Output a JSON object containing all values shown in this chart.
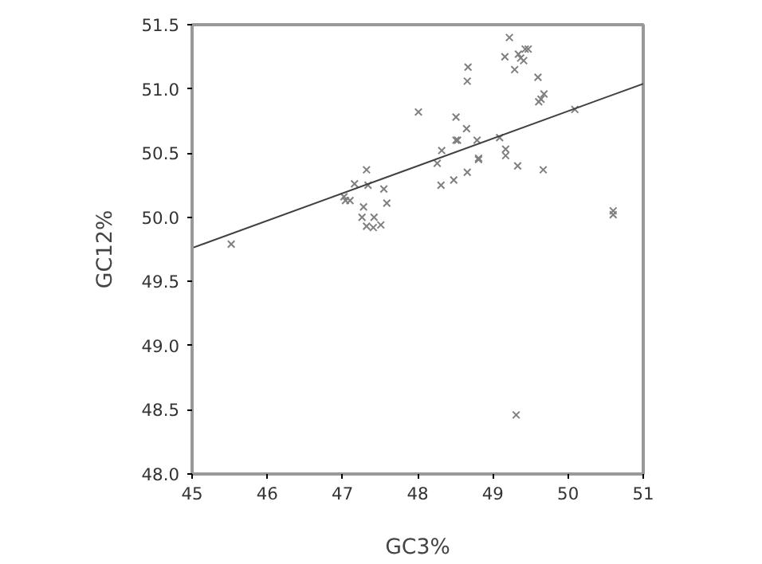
{
  "chart_data": {
    "type": "scatter",
    "xlabel": "GC3%",
    "ylabel": "GC12%",
    "xlim": [
      45,
      51
    ],
    "ylim": [
      48.0,
      51.5
    ],
    "xticks": [
      45,
      46,
      47,
      48,
      49,
      50,
      51
    ],
    "yticks": [
      {
        "value": 48.0,
        "label": "48.0"
      },
      {
        "value": 48.5,
        "label": "48.5"
      },
      {
        "value": 49.0,
        "label": "49.0"
      },
      {
        "value": 49.5,
        "label": "49.5"
      },
      {
        "value": 50.0,
        "label": "50.0"
      },
      {
        "value": 50.5,
        "label": "50.5"
      },
      {
        "value": 51.0,
        "label": "51.0"
      },
      {
        "value": 51.5,
        "label": "51.5"
      }
    ],
    "grid": false,
    "marker": "cross",
    "series": [
      {
        "color": "#7f7f7f",
        "x": [
          45.52,
          47.02,
          47.04,
          47.1,
          47.16,
          47.32,
          47.34,
          47.28,
          47.26,
          47.32,
          47.42,
          47.41,
          47.51,
          47.55,
          47.59,
          48.01,
          48.26,
          48.32,
          48.31,
          48.48,
          48.51,
          48.51,
          48.53,
          48.65,
          48.66,
          48.67,
          48.66,
          48.79,
          48.81,
          48.81,
          49.17,
          49.17,
          49.09,
          49.22,
          49.16,
          49.29,
          49.33,
          49.34,
          49.37,
          49.41,
          49.43,
          49.47,
          49.6,
          49.61,
          49.64,
          49.68,
          49.67,
          50.09,
          50.6,
          50.6,
          49.31
        ],
        "values": [
          49.79,
          50.16,
          50.13,
          50.13,
          50.26,
          50.37,
          50.25,
          50.08,
          50.0,
          49.93,
          50.0,
          49.92,
          49.94,
          50.22,
          50.11,
          50.82,
          50.42,
          50.52,
          50.25,
          50.29,
          50.78,
          50.6,
          50.6,
          50.69,
          50.35,
          51.17,
          51.06,
          50.6,
          50.46,
          50.45,
          50.53,
          50.48,
          50.62,
          51.4,
          51.25,
          51.15,
          50.4,
          51.27,
          51.24,
          51.22,
          51.31,
          51.31,
          51.09,
          50.9,
          50.92,
          50.96,
          50.37,
          50.84,
          50.05,
          50.02,
          48.46
        ]
      },
      {
        "type": "line",
        "color": "#404040",
        "x": [
          45,
          51
        ],
        "values": [
          49.76,
          51.04
        ],
        "marker": "none"
      }
    ]
  }
}
